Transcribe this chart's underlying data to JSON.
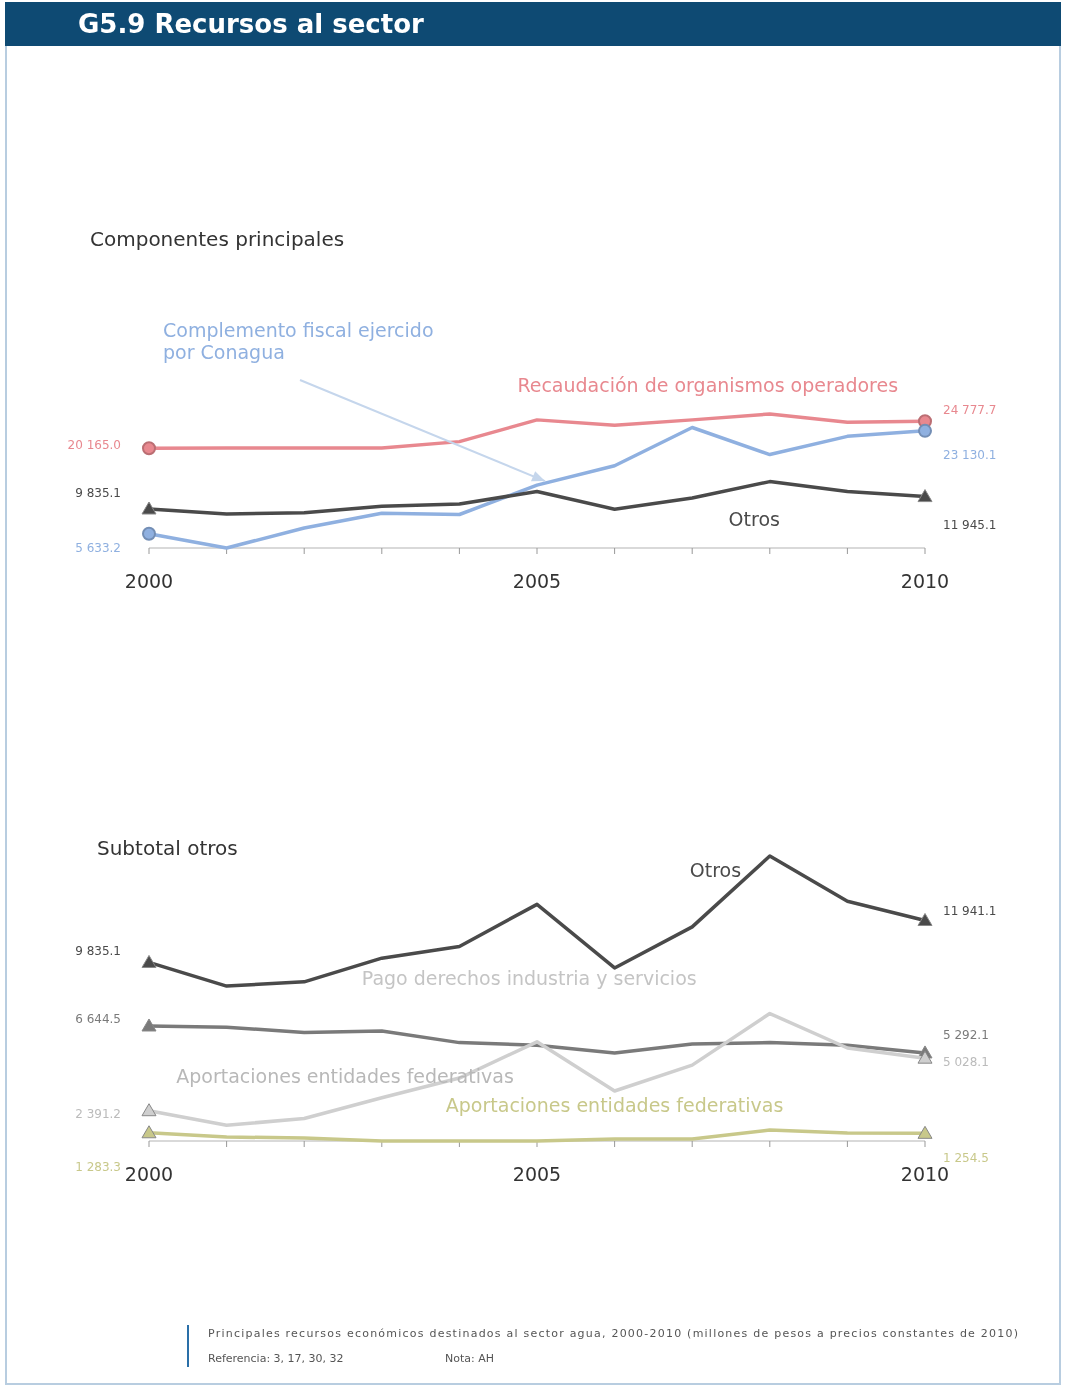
{
  "chart_data": [
    {
      "type": "line",
      "title": "G5.9 Recursos al sector",
      "subtitle": "Componentes principales",
      "tick_labels": "x",
      "grid": false,
      "x": [
        2000,
        2001,
        2002,
        2003,
        2004,
        2005,
        2006,
        2007,
        2008,
        2009,
        2010
      ],
      "xlim": [
        2000,
        2010
      ],
      "xticks": [
        2000,
        {
          "value": 2001,
          "label": null
        },
        {
          "value": 2002,
          "label": null
        },
        {
          "value": 2003,
          "label": null
        },
        {
          "value": 2004,
          "label": null
        },
        2005,
        {
          "value": 2006,
          "label": null
        },
        {
          "value": 2007,
          "label": null
        },
        {
          "value": 2008,
          "label": null
        },
        {
          "value": 2009,
          "label": null
        },
        2010
      ],
      "series": [
        {
          "name": "Recaudación de organismos operadores",
          "color": "#e8888f",
          "values": [
            20165.0,
            20200,
            20200,
            20200,
            21300,
            25000,
            24100,
            25000,
            26000,
            24600,
            24777.7
          ],
          "value_labels": [
            "20 165.0",
            null,
            null,
            null,
            null,
            null,
            null,
            null,
            null,
            null,
            "24 777.7"
          ]
        },
        {
          "name": "Complemento fiscal ejercido por Conagua",
          "color": "#8fb0e0",
          "values": [
            5633.2,
            3200,
            6600,
            9100,
            8900,
            13900,
            17200,
            23700,
            19100,
            22200,
            23130.1
          ],
          "value_labels": [
            "5 633.2",
            null,
            null,
            null,
            null,
            null,
            null,
            null,
            null,
            null,
            "23 130.1"
          ]
        },
        {
          "name": "Otros",
          "color": "#4a4a4a",
          "values": [
            9835.1,
            9000,
            9200,
            10300,
            10700,
            12800,
            9800,
            11700,
            14500,
            12800,
            11945.1
          ],
          "value_labels": [
            "9 835.1",
            null,
            null,
            null,
            null,
            null,
            null,
            null,
            null,
            null,
            "11 945.1"
          ]
        }
      ]
    },
    {
      "type": "line",
      "subtitle": "Subtotal otros",
      "tick_labels": "x",
      "grid": false,
      "x": [
        2000,
        2001,
        2002,
        2003,
        2004,
        2005,
        2006,
        2007,
        2008,
        2009,
        2010
      ],
      "xlim": [
        2000,
        2010
      ],
      "xticks": [
        2000,
        {
          "value": 2001,
          "label": null
        },
        {
          "value": 2002,
          "label": null
        },
        {
          "value": 2003,
          "label": null
        },
        {
          "value": 2004,
          "label": null
        },
        2005,
        {
          "value": 2006,
          "label": null
        },
        {
          "value": 2007,
          "label": null
        },
        {
          "value": 2008,
          "label": null
        },
        {
          "value": 2009,
          "label": null
        },
        2010
      ],
      "annotations": [
        "Aportaciones entidades federativas",
        "Principales recursos económicos destinados al sector agua, 2000-2010 (millones de pesos a precios constantes de 2010)",
        "Referencia: 3, 17, 30, 32",
        "Nota: AH"
      ],
      "series": [
        {
          "name": "Otros",
          "color": "#4a4a4a",
          "values": [
            9835.1,
            8650,
            8860,
            10050,
            10640,
            12750,
            9560,
            11620,
            15180,
            12910,
            11941.1
          ],
          "value_labels": [
            "9 835.1",
            null,
            null,
            null,
            null,
            null,
            null,
            null,
            null,
            null,
            "11 941.1"
          ]
        },
        {
          "color": "#7a7a7a",
          "values": [
            6644.5,
            6580,
            6320,
            6390,
            5810,
            5680,
            5290,
            5740,
            5810,
            5680,
            5292.1
          ],
          "value_labels": [
            "6 644.5",
            null,
            null,
            null,
            null,
            null,
            null,
            null,
            null,
            null,
            "5 292.1"
          ]
        },
        {
          "name": "Pago derechos industria y servicios",
          "color": "#cfcfcf",
          "values": [
            2391.2,
            1660,
            2000,
            3040,
            4030,
            5850,
            3380,
            4680,
            7270,
            5540,
            5028.1
          ],
          "value_labels": [
            "2 391.2",
            null,
            null,
            null,
            null,
            null,
            null,
            null,
            null,
            null,
            "5 028.1"
          ]
        },
        {
          "name": "Aportaciones entidades federativas",
          "color": "#c8c88a",
          "values": [
            1283.3,
            1070,
            1020,
            870,
            870,
            870,
            970,
            970,
            1420,
            1270,
            1254.5
          ],
          "value_labels": [
            "1 283.3",
            null,
            null,
            null,
            null,
            null,
            null,
            null,
            null,
            null,
            "1 254.5"
          ]
        }
      ]
    }
  ]
}
